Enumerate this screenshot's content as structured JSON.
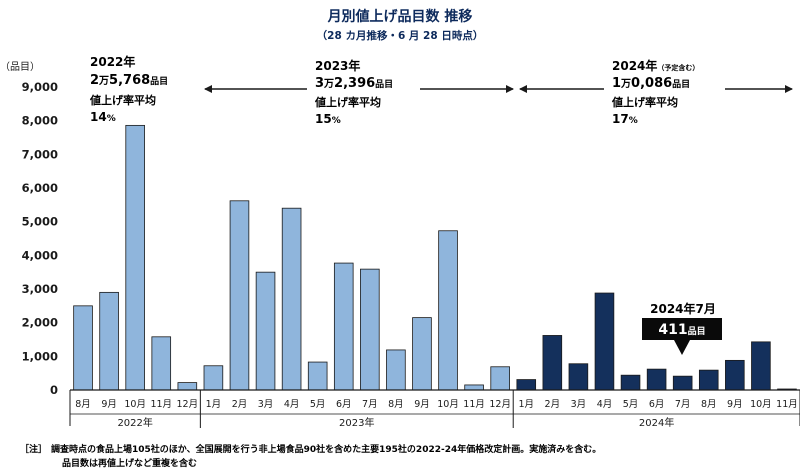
{
  "chart_data": {
    "type": "bar",
    "title": "月別値上げ品目数 推移",
    "subtitle": "（28 カ月推移・6 月 28 日時点）",
    "ylabel": "（品目）",
    "ylim": [
      0,
      9000
    ],
    "yticks": [
      "0",
      "1,000",
      "2,000",
      "3,000",
      "4,000",
      "5,000",
      "6,000",
      "7,000",
      "8,000",
      "9,000"
    ],
    "grid": false,
    "categories": [
      "8月",
      "9月",
      "10月",
      "11月",
      "12月",
      "1月",
      "2月",
      "3月",
      "4月",
      "5月",
      "6月",
      "7月",
      "8月",
      "9月",
      "10月",
      "11月",
      "12月",
      "1月",
      "2月",
      "3月",
      "4月",
      "5月",
      "6月",
      "7月",
      "8月",
      "9月",
      "10月",
      "11月"
    ],
    "values": [
      2500,
      2900,
      7860,
      1580,
      220,
      720,
      5620,
      3500,
      5400,
      830,
      3770,
      3590,
      1190,
      2150,
      4730,
      150,
      690,
      310,
      1620,
      780,
      2880,
      440,
      620,
      411,
      590,
      880,
      1430,
      20
    ],
    "years": [
      {
        "label": "2022年",
        "count": 5,
        "color": "#8fb5dc"
      },
      {
        "label": "2023年",
        "count": 12,
        "color": "#8fb5dc"
      },
      {
        "label": "2024年",
        "count": 11,
        "color": "#14305c"
      }
    ],
    "summaries": [
      {
        "year": "2022年",
        "total_prefix": "2",
        "total_man": "万",
        "total_rest": "5,768",
        "unit": "品目",
        "rate_label": "値上げ率平均",
        "rate_value": "14",
        "rate_unit": "%"
      },
      {
        "year": "2023年",
        "total_prefix": "3",
        "total_man": "万",
        "total_rest": "2,396",
        "unit": "品目",
        "rate_label": "値上げ率平均",
        "rate_value": "15",
        "rate_unit": "%"
      },
      {
        "year": "2024年",
        "year_note": "（予定含む）",
        "total_prefix": "1",
        "total_man": "万",
        "total_rest": "0,086",
        "unit": "品目",
        "rate_label": "値上げ率平均",
        "rate_value": "17",
        "rate_unit": "%"
      }
    ],
    "callout": {
      "title": "2024年7月",
      "value": "411",
      "unit": "品目"
    },
    "note": {
      "prefix": "［注］",
      "line1": "調査時点の食品上場105社のほか、全国展開を行う非上場食品90社を含めた主要195社の2022-24年価格改定計画。実施済みを含む。",
      "line2": "品目数は再値上げなど重複を含む"
    }
  },
  "colors": {
    "light_bar": "#8fb5dc",
    "dark_bar": "#14305c",
    "axis": "#1a1a1a",
    "text": "#1a1a1a"
  }
}
